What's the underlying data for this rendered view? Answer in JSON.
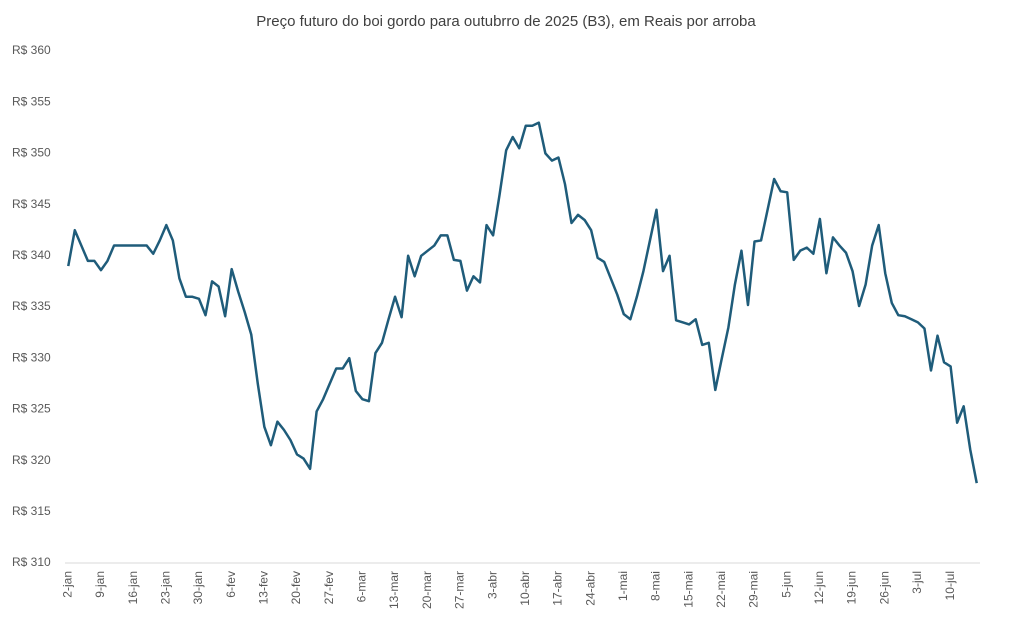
{
  "chart_data": {
    "type": "line",
    "title": "Preço futuro do boi gordo para outubrro de 2025 (B3), em Reais por arroba",
    "categories": [
      "2-jan",
      null,
      null,
      null,
      null,
      "9-jan",
      null,
      null,
      null,
      null,
      "16-jan",
      null,
      null,
      null,
      null,
      "23-jan",
      null,
      null,
      null,
      null,
      "30-jan",
      null,
      null,
      null,
      null,
      "6-fev",
      null,
      null,
      null,
      null,
      "13-fev",
      null,
      null,
      null,
      null,
      "20-fev",
      null,
      null,
      null,
      null,
      "27-fev",
      null,
      null,
      null,
      null,
      "6-mar",
      null,
      null,
      null,
      null,
      "13-mar",
      null,
      null,
      null,
      null,
      "20-mar",
      null,
      null,
      null,
      null,
      "27-mar",
      null,
      null,
      null,
      null,
      "3-abr",
      null,
      null,
      null,
      null,
      "10-abr",
      null,
      null,
      null,
      null,
      "17-abr",
      null,
      null,
      null,
      null,
      "24-abr",
      null,
      null,
      null,
      null,
      "1-mai",
      null,
      null,
      null,
      null,
      "8-mai",
      null,
      null,
      null,
      null,
      "15-mai",
      null,
      null,
      null,
      null,
      "22-mai",
      null,
      null,
      null,
      null,
      "29-mai",
      null,
      null,
      null,
      null,
      "5-jun",
      null,
      null,
      null,
      null,
      "12-jun",
      null,
      null,
      null,
      null,
      "19-jun",
      null,
      null,
      null,
      null,
      "26-jun",
      null,
      null,
      null,
      null,
      "3-jul",
      null,
      null,
      null,
      null,
      "10-jul",
      null,
      null,
      null,
      null
    ],
    "series": [
      {
        "color": "#1f5c7a",
        "values": [
          339,
          342.5,
          341,
          339.5,
          339.5,
          338.6,
          339.5,
          341,
          341,
          341,
          341,
          341,
          341,
          340.2,
          341.5,
          343,
          341.5,
          337.8,
          336,
          336,
          335.8,
          334.2,
          337.5,
          337,
          334.1,
          338.7,
          336.5,
          334.5,
          332.3,
          327.5,
          323.3,
          321.5,
          323.8,
          323,
          322,
          320.6,
          320.2,
          319.2,
          324.8,
          326,
          327.5,
          329,
          329,
          330,
          326.8,
          326,
          325.8,
          330.5,
          331.5,
          333.8,
          336,
          334,
          340,
          338,
          340,
          340.5,
          341,
          342,
          342,
          339.6,
          339.5,
          336.6,
          338,
          337.4,
          343,
          342,
          346,
          350.3,
          351.6,
          350.5,
          352.7,
          352.7,
          353,
          350,
          349.3,
          349.6,
          347,
          343.2,
          344,
          343.5,
          342.5,
          339.8,
          339.4,
          337.8,
          336.2,
          334.3,
          333.8,
          336,
          338.5,
          341.5,
          344.5,
          338.5,
          340,
          333.7,
          333.5,
          333.3,
          333.8,
          331.3,
          331.5,
          326.9,
          330,
          333,
          337.2,
          340.5,
          335.2,
          341.4,
          341.5,
          344.5,
          347.5,
          346.3,
          346.2,
          339.6,
          340.5,
          340.8,
          340.2,
          343.6,
          338.3,
          341.8,
          341,
          340.3,
          338.5,
          335.1,
          337.2,
          341,
          343,
          338.3,
          335.4,
          334.2,
          334.1,
          333.8,
          333.5,
          332.9,
          328.8,
          332.2,
          329.6,
          329.2,
          323.7,
          325.3,
          321.1,
          317.8
        ]
      }
    ],
    "ylim": [
      310,
      360
    ],
    "yticks": [
      {
        "value": 310,
        "label": "R$ 310"
      },
      {
        "value": 315,
        "label": "R$ 315"
      },
      {
        "value": 320,
        "label": "R$ 320"
      },
      {
        "value": 325,
        "label": "R$ 325"
      },
      {
        "value": 330,
        "label": "R$ 330"
      },
      {
        "value": 335,
        "label": "R$ 335"
      },
      {
        "value": 340,
        "label": "R$ 340"
      },
      {
        "value": 345,
        "label": "R$ 345"
      },
      {
        "value": 350,
        "label": "R$ 350"
      },
      {
        "value": 355,
        "label": "R$ 355"
      },
      {
        "value": 360,
        "label": "R$ 360"
      }
    ],
    "grid": false
  }
}
